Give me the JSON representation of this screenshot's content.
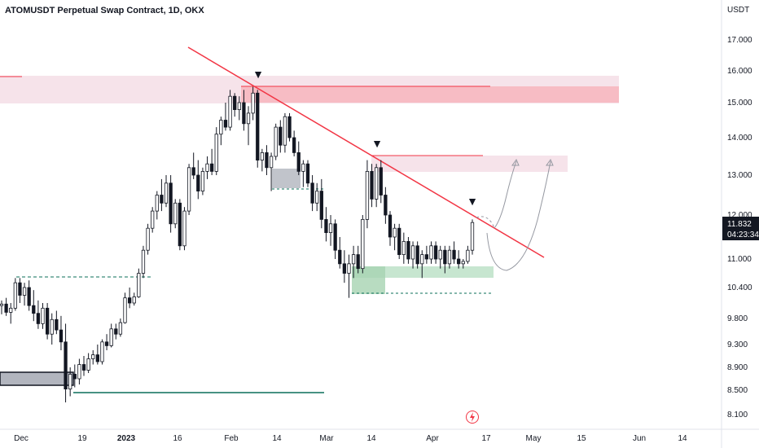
{
  "header": {
    "title": "ATOMUSDT Perpetual Swap Contract, 1D, OKX"
  },
  "chart_data": {
    "type": "candlestick",
    "currency_label": "USDT",
    "y_ticks": [
      "17.000",
      "16.000",
      "15.000",
      "14.000",
      "13.000",
      "12.000",
      "11.000",
      "10.400",
      "9.800",
      "9.300",
      "8.900",
      "8.500",
      "8.100"
    ],
    "x_ticks": [
      "Dec",
      "19",
      "2023",
      "16",
      "Feb",
      "14",
      "Mar",
      "14",
      "Apr",
      "17",
      "May",
      "15",
      "Jun",
      "14"
    ],
    "last_price": "11.832",
    "countdown": "04:23:34",
    "ohlc": [
      [
        10.05,
        10.15,
        9.88,
        10.08
      ],
      [
        10.08,
        10.2,
        9.85,
        9.92
      ],
      [
        9.92,
        10.1,
        9.7,
        10.0
      ],
      [
        10.0,
        10.6,
        9.95,
        10.5
      ],
      [
        10.5,
        10.6,
        10.1,
        10.25
      ],
      [
        10.25,
        10.5,
        10.05,
        10.4
      ],
      [
        10.4,
        10.55,
        9.95,
        10.05
      ],
      [
        10.05,
        10.35,
        9.75,
        9.9
      ],
      [
        9.9,
        10.15,
        9.6,
        9.7
      ],
      [
        9.7,
        10.1,
        9.6,
        10.0
      ],
      [
        10.0,
        10.1,
        9.4,
        9.5
      ],
      [
        9.5,
        9.9,
        9.3,
        9.78
      ],
      [
        9.78,
        9.95,
        9.5,
        9.58
      ],
      [
        9.58,
        9.85,
        9.2,
        9.35
      ],
      [
        9.35,
        9.7,
        8.3,
        8.52
      ],
      [
        8.52,
        8.9,
        8.4,
        8.78
      ],
      [
        8.78,
        8.95,
        8.55,
        8.7
      ],
      [
        8.7,
        9.05,
        8.6,
        8.95
      ],
      [
        8.95,
        9.1,
        8.75,
        8.85
      ],
      [
        8.85,
        9.15,
        8.8,
        9.05
      ],
      [
        9.05,
        9.2,
        8.95,
        9.12
      ],
      [
        9.12,
        9.3,
        8.95,
        9.0
      ],
      [
        9.0,
        9.4,
        8.95,
        9.35
      ],
      [
        9.35,
        9.5,
        9.2,
        9.28
      ],
      [
        9.28,
        9.7,
        9.25,
        9.6
      ],
      [
        9.6,
        9.7,
        9.4,
        9.5
      ],
      [
        9.5,
        9.8,
        9.45,
        9.72
      ],
      [
        9.72,
        10.3,
        9.7,
        10.2
      ],
      [
        10.2,
        10.4,
        10.0,
        10.1
      ],
      [
        10.1,
        10.3,
        10.05,
        10.22
      ],
      [
        10.22,
        10.8,
        10.2,
        10.7
      ],
      [
        10.7,
        11.3,
        10.6,
        11.2
      ],
      [
        11.2,
        11.8,
        11.1,
        11.7
      ],
      [
        11.7,
        12.2,
        11.6,
        12.1
      ],
      [
        12.1,
        12.6,
        11.9,
        12.5
      ],
      [
        12.5,
        12.9,
        12.1,
        12.3
      ],
      [
        12.3,
        13.0,
        12.2,
        12.8
      ],
      [
        12.8,
        13.0,
        11.6,
        11.8
      ],
      [
        11.8,
        12.4,
        11.7,
        12.3
      ],
      [
        12.3,
        12.4,
        11.2,
        11.3
      ],
      [
        11.3,
        12.2,
        11.2,
        12.1
      ],
      [
        12.1,
        13.3,
        12.0,
        13.2
      ],
      [
        13.2,
        13.6,
        12.9,
        13.0
      ],
      [
        13.0,
        13.4,
        12.4,
        12.6
      ],
      [
        12.6,
        13.2,
        12.5,
        13.1
      ],
      [
        13.1,
        13.5,
        12.9,
        13.3
      ],
      [
        13.3,
        13.7,
        13.0,
        13.1
      ],
      [
        13.1,
        14.3,
        13.0,
        14.1
      ],
      [
        14.1,
        14.6,
        13.8,
        14.5
      ],
      [
        14.5,
        15.0,
        14.2,
        14.3
      ],
      [
        14.3,
        15.4,
        14.2,
        15.2
      ],
      [
        15.2,
        15.3,
        14.6,
        14.8
      ],
      [
        14.8,
        15.2,
        14.5,
        15.0
      ],
      [
        15.0,
        15.4,
        14.2,
        14.4
      ],
      [
        14.4,
        14.9,
        13.8,
        14.7
      ],
      [
        14.7,
        15.5,
        14.5,
        15.3
      ],
      [
        15.3,
        15.4,
        13.2,
        13.4
      ],
      [
        13.4,
        13.7,
        13.1,
        13.6
      ],
      [
        13.6,
        13.8,
        13.0,
        13.2
      ],
      [
        13.2,
        13.6,
        12.6,
        13.5
      ],
      [
        13.5,
        14.4,
        13.4,
        14.3
      ],
      [
        14.3,
        14.5,
        13.6,
        13.8
      ],
      [
        13.8,
        14.7,
        13.6,
        14.6
      ],
      [
        14.6,
        14.7,
        13.9,
        14.0
      ],
      [
        14.0,
        14.2,
        13.5,
        13.6
      ],
      [
        13.6,
        13.9,
        13.0,
        13.1
      ],
      [
        13.1,
        13.4,
        12.7,
        13.3
      ],
      [
        13.3,
        13.4,
        12.7,
        12.8
      ],
      [
        12.8,
        13.0,
        12.1,
        12.3
      ],
      [
        12.3,
        12.8,
        12.1,
        12.6
      ],
      [
        12.6,
        12.9,
        11.7,
        11.9
      ],
      [
        11.9,
        12.2,
        11.4,
        11.6
      ],
      [
        11.6,
        12.0,
        11.3,
        11.8
      ],
      [
        11.8,
        11.9,
        11.0,
        11.2
      ],
      [
        11.2,
        11.5,
        10.8,
        10.9
      ],
      [
        10.9,
        11.2,
        10.5,
        10.7
      ],
      [
        10.7,
        11.1,
        10.2,
        10.9
      ],
      [
        10.9,
        11.3,
        10.6,
        11.1
      ],
      [
        11.1,
        11.3,
        10.7,
        10.8
      ],
      [
        10.8,
        12.0,
        10.7,
        11.9
      ],
      [
        11.9,
        13.4,
        11.7,
        13.1
      ],
      [
        13.1,
        13.3,
        12.2,
        12.4
      ],
      [
        12.4,
        13.3,
        12.2,
        13.2
      ],
      [
        13.2,
        13.4,
        12.3,
        12.5
      ],
      [
        12.5,
        12.7,
        11.8,
        12.0
      ],
      [
        12.0,
        12.1,
        11.3,
        11.5
      ],
      [
        11.5,
        11.8,
        11.2,
        11.7
      ],
      [
        11.7,
        11.8,
        11.0,
        11.1
      ],
      [
        11.1,
        11.6,
        10.9,
        11.4
      ],
      [
        11.4,
        11.5,
        10.9,
        11.0
      ],
      [
        11.0,
        11.4,
        10.8,
        11.3
      ],
      [
        11.3,
        11.4,
        10.8,
        10.9
      ],
      [
        10.9,
        11.2,
        10.6,
        11.1
      ],
      [
        11.1,
        11.3,
        10.9,
        11.0
      ],
      [
        11.0,
        11.4,
        10.9,
        11.3
      ],
      [
        11.3,
        11.4,
        10.9,
        11.0
      ],
      [
        11.0,
        11.3,
        10.8,
        11.2
      ],
      [
        11.2,
        11.3,
        10.7,
        10.9
      ],
      [
        10.9,
        11.3,
        10.8,
        11.2
      ],
      [
        11.2,
        11.4,
        10.9,
        11.0
      ],
      [
        11.0,
        11.2,
        10.8,
        10.9
      ],
      [
        10.9,
        11.0,
        10.8,
        10.95
      ],
      [
        10.95,
        11.3,
        10.9,
        11.2
      ],
      [
        11.2,
        11.9,
        11.1,
        11.83
      ]
    ],
    "markers": [
      "▼",
      "▼",
      "▼"
    ]
  },
  "colors": {
    "up": "#26a69a",
    "down": "#131722",
    "trendline": "#f23645",
    "supply_zone": "#f7bcc4",
    "supply_zone_light": "#f6e3ea",
    "demand_zone": "#c7e6d0",
    "demand_zone_dark": "#a6d3b1",
    "grey_zone": "#b2b5be",
    "support_line": "#0b6f5a",
    "last_price_badge": "#131722",
    "forecast": "#9598a1"
  },
  "icons": {
    "flash": "flash-icon"
  }
}
